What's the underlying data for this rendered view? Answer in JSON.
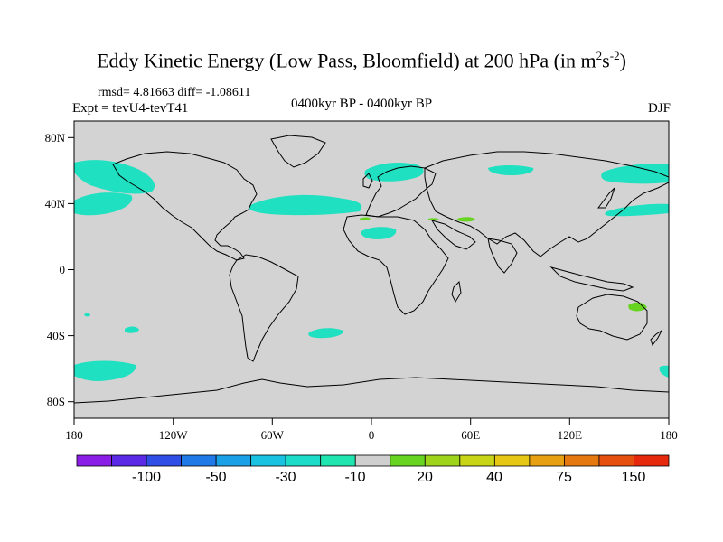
{
  "title": "Eddy Kinetic Energy (Low Pass, Bloomfield) at 200 hPa (in m²s⁻²)",
  "stats": "rmsd= 4.81663 diff= -1.08611",
  "expt": "Expt = tevU4-tevT41",
  "period": "0400kyr BP - 0400kyr BP",
  "season": "DJF",
  "colors": {
    "land_background": "#d3d3d3",
    "cyan_anomaly": "#1fe0c0",
    "green_anomaly": "#66d420"
  },
  "map": {
    "lon_ticks": [
      "180",
      "120W",
      "60W",
      "0",
      "60E",
      "120E",
      "180"
    ],
    "lat_ticks": [
      "80N",
      "40N",
      "0",
      "40S",
      "80S"
    ]
  },
  "colorbar": {
    "colors": [
      "#8a1ee6",
      "#5a2ae6",
      "#2f4ee6",
      "#1f7ae8",
      "#1aa0e6",
      "#18c2e0",
      "#1bdcc8",
      "#1fe6b0",
      "#cfcfcf",
      "#66d420",
      "#9ed41a",
      "#c8d416",
      "#e6c814",
      "#e6a012",
      "#e67810",
      "#e6500e",
      "#e6280c"
    ],
    "labels": [
      "-100",
      "-50",
      "-30",
      "-10",
      "20",
      "40",
      "75",
      "150"
    ]
  }
}
